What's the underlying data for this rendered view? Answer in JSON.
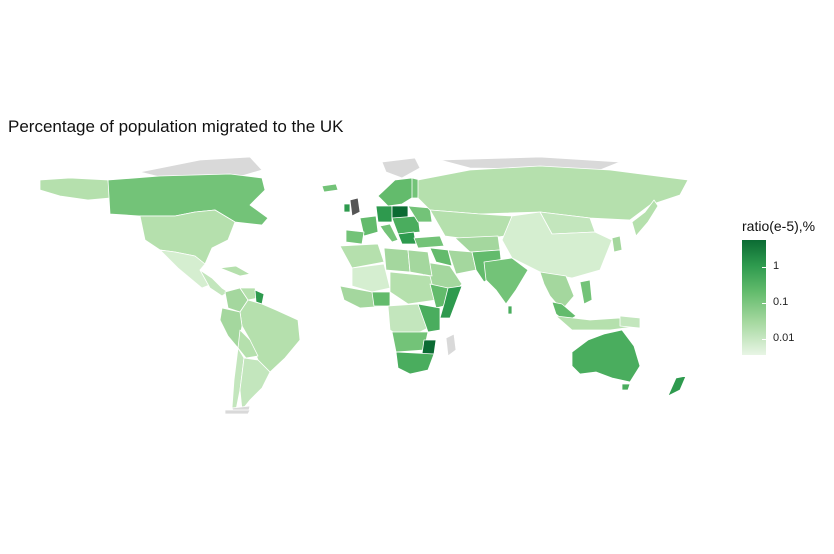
{
  "map": {
    "title": "Percentage of population migrated to the UK"
  },
  "legend": {
    "title": "ratio(e-5),%",
    "ticks": [
      "1",
      "0.1",
      "0.01"
    ],
    "tick_values": [
      1,
      0.1,
      0.01
    ],
    "scale": "log10",
    "colors": {
      "high": "#0b6b33",
      "mid": "#63bb6c",
      "low": "#e8f5e5",
      "no_data": "#d9d9d9"
    }
  }
}
